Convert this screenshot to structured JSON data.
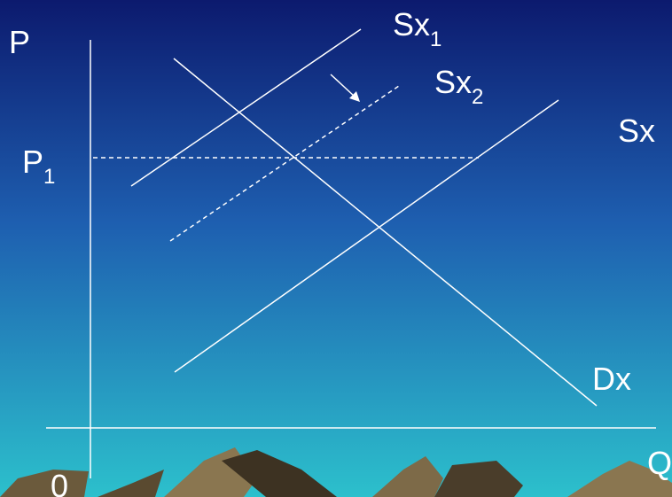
{
  "axes": {
    "y_label": "P",
    "x_label": "Q",
    "origin": "0"
  },
  "price_label": {
    "text": "P",
    "sub": "1"
  },
  "curves": [
    {
      "text": "Sx",
      "sub": "1"
    },
    {
      "text": "Sx",
      "sub": "2"
    },
    {
      "text": "Sx"
    },
    {
      "text": "Dx"
    }
  ]
}
